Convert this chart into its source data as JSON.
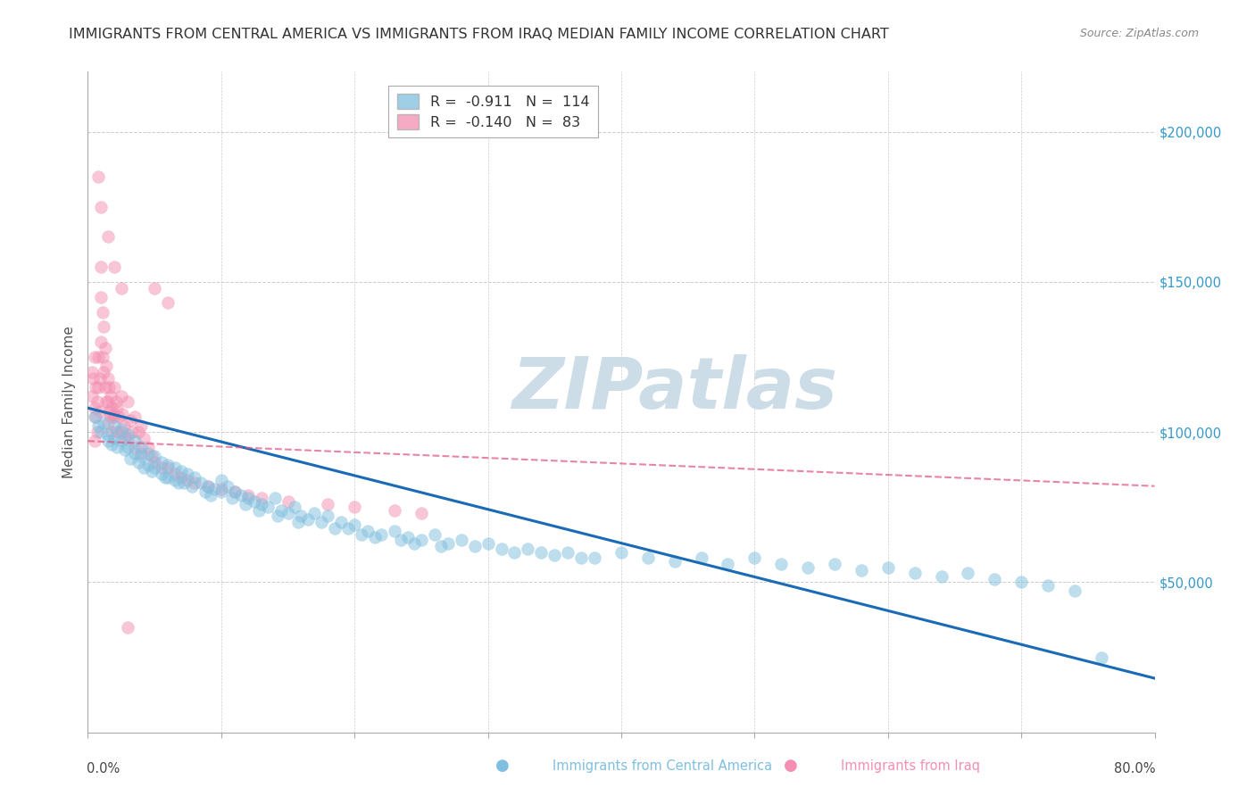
{
  "title": "IMMIGRANTS FROM CENTRAL AMERICA VS IMMIGRANTS FROM IRAQ MEDIAN FAMILY INCOME CORRELATION CHART",
  "source": "Source: ZipAtlas.com",
  "ylabel": "Median Family Income",
  "legend_entries": [
    {
      "label": "Immigrants from Central America",
      "color": "#7fbfdf",
      "R": "-0.911",
      "N": "114"
    },
    {
      "label": "Immigrants from Iraq",
      "color": "#f48fb1",
      "R": "-0.140",
      "N": "83"
    }
  ],
  "watermark": "ZIPatlas",
  "right_axis_ticks": [
    0,
    50000,
    100000,
    150000,
    200000
  ],
  "right_axis_labels": [
    "",
    "$50,000",
    "$100,000",
    "$150,000",
    "$200,000"
  ],
  "xlim": [
    0.0,
    0.8
  ],
  "ylim": [
    0,
    220000
  ],
  "blue_scatter_x": [
    0.005,
    0.008,
    0.01,
    0.012,
    0.015,
    0.015,
    0.018,
    0.02,
    0.02,
    0.022,
    0.025,
    0.025,
    0.028,
    0.03,
    0.03,
    0.032,
    0.035,
    0.035,
    0.038,
    0.04,
    0.04,
    0.042,
    0.045,
    0.045,
    0.048,
    0.05,
    0.05,
    0.055,
    0.055,
    0.058,
    0.06,
    0.06,
    0.065,
    0.065,
    0.068,
    0.07,
    0.072,
    0.075,
    0.078,
    0.08,
    0.085,
    0.088,
    0.09,
    0.092,
    0.095,
    0.1,
    0.1,
    0.105,
    0.108,
    0.11,
    0.115,
    0.118,
    0.12,
    0.125,
    0.128,
    0.13,
    0.135,
    0.14,
    0.142,
    0.145,
    0.15,
    0.155,
    0.158,
    0.16,
    0.165,
    0.17,
    0.175,
    0.18,
    0.185,
    0.19,
    0.195,
    0.2,
    0.205,
    0.21,
    0.215,
    0.22,
    0.23,
    0.235,
    0.24,
    0.245,
    0.25,
    0.26,
    0.265,
    0.27,
    0.28,
    0.29,
    0.3,
    0.31,
    0.32,
    0.33,
    0.34,
    0.35,
    0.36,
    0.37,
    0.38,
    0.4,
    0.42,
    0.44,
    0.46,
    0.48,
    0.5,
    0.52,
    0.54,
    0.56,
    0.58,
    0.6,
    0.62,
    0.64,
    0.66,
    0.68,
    0.7,
    0.72,
    0.74,
    0.76
  ],
  "blue_scatter_y": [
    105000,
    102000,
    100000,
    103000,
    99000,
    97000,
    96000,
    102000,
    98000,
    95000,
    101000,
    97000,
    94000,
    99000,
    95000,
    91000,
    97000,
    93000,
    90000,
    95000,
    92000,
    88000,
    93000,
    89000,
    87000,
    92000,
    88000,
    90000,
    86000,
    85000,
    89000,
    85000,
    88000,
    84000,
    83000,
    87000,
    83000,
    86000,
    82000,
    85000,
    83000,
    80000,
    82000,
    79000,
    81000,
    84000,
    80000,
    82000,
    78000,
    80000,
    79000,
    76000,
    78000,
    77000,
    74000,
    76000,
    75000,
    78000,
    72000,
    74000,
    73000,
    75000,
    70000,
    72000,
    71000,
    73000,
    70000,
    72000,
    68000,
    70000,
    68000,
    69000,
    66000,
    67000,
    65000,
    66000,
    67000,
    64000,
    65000,
    63000,
    64000,
    66000,
    62000,
    63000,
    64000,
    62000,
    63000,
    61000,
    60000,
    61000,
    60000,
    59000,
    60000,
    58000,
    58000,
    60000,
    58000,
    57000,
    58000,
    56000,
    58000,
    56000,
    55000,
    56000,
    54000,
    55000,
    53000,
    52000,
    53000,
    51000,
    50000,
    49000,
    47000,
    25000
  ],
  "pink_scatter_x": [
    0.003,
    0.003,
    0.004,
    0.005,
    0.005,
    0.005,
    0.006,
    0.006,
    0.007,
    0.007,
    0.008,
    0.008,
    0.009,
    0.009,
    0.01,
    0.01,
    0.01,
    0.011,
    0.011,
    0.012,
    0.012,
    0.013,
    0.013,
    0.014,
    0.014,
    0.015,
    0.015,
    0.015,
    0.016,
    0.016,
    0.017,
    0.017,
    0.018,
    0.018,
    0.019,
    0.02,
    0.02,
    0.021,
    0.022,
    0.022,
    0.023,
    0.025,
    0.025,
    0.026,
    0.027,
    0.028,
    0.03,
    0.03,
    0.032,
    0.033,
    0.035,
    0.035,
    0.038,
    0.04,
    0.04,
    0.042,
    0.045,
    0.048,
    0.05,
    0.055,
    0.06,
    0.065,
    0.07,
    0.075,
    0.08,
    0.09,
    0.1,
    0.11,
    0.12,
    0.13,
    0.15,
    0.18,
    0.2,
    0.23,
    0.25,
    0.05,
    0.06,
    0.008,
    0.01,
    0.015,
    0.02,
    0.025,
    0.03
  ],
  "pink_scatter_y": [
    120000,
    112000,
    118000,
    108000,
    125000,
    97000,
    115000,
    105000,
    110000,
    100000,
    125000,
    115000,
    107000,
    118000,
    155000,
    145000,
    130000,
    140000,
    125000,
    135000,
    120000,
    128000,
    115000,
    122000,
    110000,
    118000,
    110000,
    103000,
    115000,
    107000,
    112000,
    105000,
    108000,
    100000,
    106000,
    115000,
    105000,
    110000,
    108000,
    100000,
    105000,
    112000,
    100000,
    106000,
    102000,
    98000,
    110000,
    98000,
    104000,
    100000,
    105000,
    95000,
    100000,
    102000,
    93000,
    98000,
    95000,
    92000,
    90000,
    88000,
    88000,
    86000,
    85000,
    84000,
    83000,
    82000,
    81000,
    80000,
    79000,
    78000,
    77000,
    76000,
    75000,
    74000,
    73000,
    148000,
    143000,
    185000,
    175000,
    165000,
    155000,
    148000,
    35000
  ],
  "blue_line_x": [
    0.0,
    0.8
  ],
  "blue_line_y": [
    108000,
    18000
  ],
  "pink_line_x": [
    0.0,
    0.8
  ],
  "pink_line_y": [
    97000,
    82000
  ],
  "scatter_alpha": 0.5,
  "scatter_size": 100,
  "blue_color": "#7fbfdf",
  "pink_color": "#f48fb1",
  "blue_line_color": "#1a6bb5",
  "pink_line_color": "#e05080",
  "bg_color": "#ffffff",
  "grid_color": "#cccccc",
  "title_color": "#333333",
  "watermark_color": "#ccdde8",
  "title_fontsize": 11.5,
  "source_fontsize": 9
}
